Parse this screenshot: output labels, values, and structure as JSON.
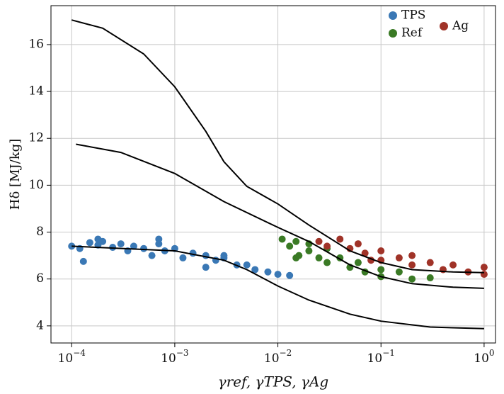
{
  "chart_data": {
    "type": "scatter",
    "xlabel": "γref, γTPS, γAg",
    "ylabel": "Hδ [MJ/kg]",
    "xscale": "log",
    "xlim": [
      6.3e-05,
      1.29
    ],
    "ylim": [
      3.27,
      17.66
    ],
    "grid": true,
    "legend": "upper right",
    "xticks": [
      {
        "value": 0.0001,
        "label": "10",
        "exponent": "−4"
      },
      {
        "value": 0.001,
        "label": "10",
        "exponent": "−3"
      },
      {
        "value": 0.01,
        "label": "10",
        "exponent": "−2"
      },
      {
        "value": 0.1,
        "label": "10",
        "exponent": "−1"
      },
      {
        "value": 1,
        "label": "10",
        "exponent": "0"
      }
    ],
    "yticks": [
      4,
      6,
      8,
      10,
      12,
      14,
      16
    ],
    "series": [
      {
        "name": "TPS",
        "color": "#3a78b5",
        "x": [
          0.0001,
          0.00012,
          0.00013,
          0.00015,
          0.00018,
          0.0002,
          0.00025,
          0.0003,
          0.00035,
          0.0004,
          0.0005,
          0.0006,
          0.0007,
          0.0008,
          0.001,
          0.0012,
          0.0015,
          0.002,
          0.0025,
          0.003,
          0.004,
          0.005,
          0.006,
          0.008,
          0.01,
          0.013,
          0.00018,
          0.0007,
          0.002,
          0.003
        ],
        "values": [
          7.4,
          7.3,
          6.75,
          7.55,
          7.45,
          7.6,
          7.35,
          7.5,
          7.2,
          7.4,
          7.3,
          7.0,
          7.5,
          7.2,
          7.3,
          6.9,
          7.1,
          7.0,
          6.8,
          6.9,
          6.6,
          6.6,
          6.4,
          6.3,
          6.2,
          6.15,
          7.7,
          7.7,
          6.5,
          7.0
        ]
      },
      {
        "name": "Ref",
        "color": "#3a7a25",
        "x": [
          0.011,
          0.013,
          0.015,
          0.016,
          0.02,
          0.02,
          0.025,
          0.03,
          0.03,
          0.04,
          0.05,
          0.06,
          0.07,
          0.1,
          0.1,
          0.15,
          0.2,
          0.3,
          0.015
        ],
        "values": [
          7.7,
          7.4,
          7.6,
          7.0,
          7.5,
          7.2,
          6.9,
          7.3,
          6.7,
          6.9,
          6.5,
          6.7,
          6.3,
          6.4,
          6.1,
          6.3,
          6.0,
          6.05,
          6.9
        ]
      },
      {
        "name": "Ag",
        "color": "#a03328",
        "x": [
          0.025,
          0.03,
          0.04,
          0.05,
          0.06,
          0.07,
          0.1,
          0.1,
          0.15,
          0.2,
          0.3,
          0.4,
          0.5,
          0.7,
          1.0,
          1.0,
          0.2,
          0.08
        ],
        "values": [
          7.6,
          7.4,
          7.7,
          7.3,
          7.5,
          7.1,
          7.2,
          6.8,
          6.9,
          6.6,
          6.7,
          6.4,
          6.6,
          6.3,
          6.5,
          6.2,
          7.0,
          6.8
        ]
      }
    ],
    "lines": [
      {
        "color": "#000000",
        "x": [
          0.0001,
          0.0002,
          0.0005,
          0.001,
          0.002,
          0.003,
          0.005,
          0.01,
          0.02,
          0.05,
          0.1,
          0.2,
          0.5,
          1
        ],
        "values": [
          17.05,
          16.7,
          15.6,
          14.2,
          12.3,
          11.0,
          9.95,
          9.2,
          8.3,
          7.2,
          6.7,
          6.4,
          6.3,
          6.27
        ]
      },
      {
        "color": "#000000",
        "x": [
          0.00011,
          0.0003,
          0.001,
          0.003,
          0.01,
          0.02,
          0.05,
          0.1,
          0.2,
          0.5,
          1
        ],
        "values": [
          11.75,
          11.4,
          10.5,
          9.3,
          8.2,
          7.6,
          6.6,
          6.1,
          5.8,
          5.65,
          5.6
        ]
      },
      {
        "color": "#000000",
        "x": [
          0.0001,
          0.001,
          0.003,
          0.005,
          0.01,
          0.02,
          0.05,
          0.1,
          0.3,
          1
        ],
        "values": [
          7.4,
          7.2,
          6.8,
          6.4,
          5.7,
          5.1,
          4.5,
          4.2,
          3.95,
          3.88
        ]
      }
    ]
  }
}
